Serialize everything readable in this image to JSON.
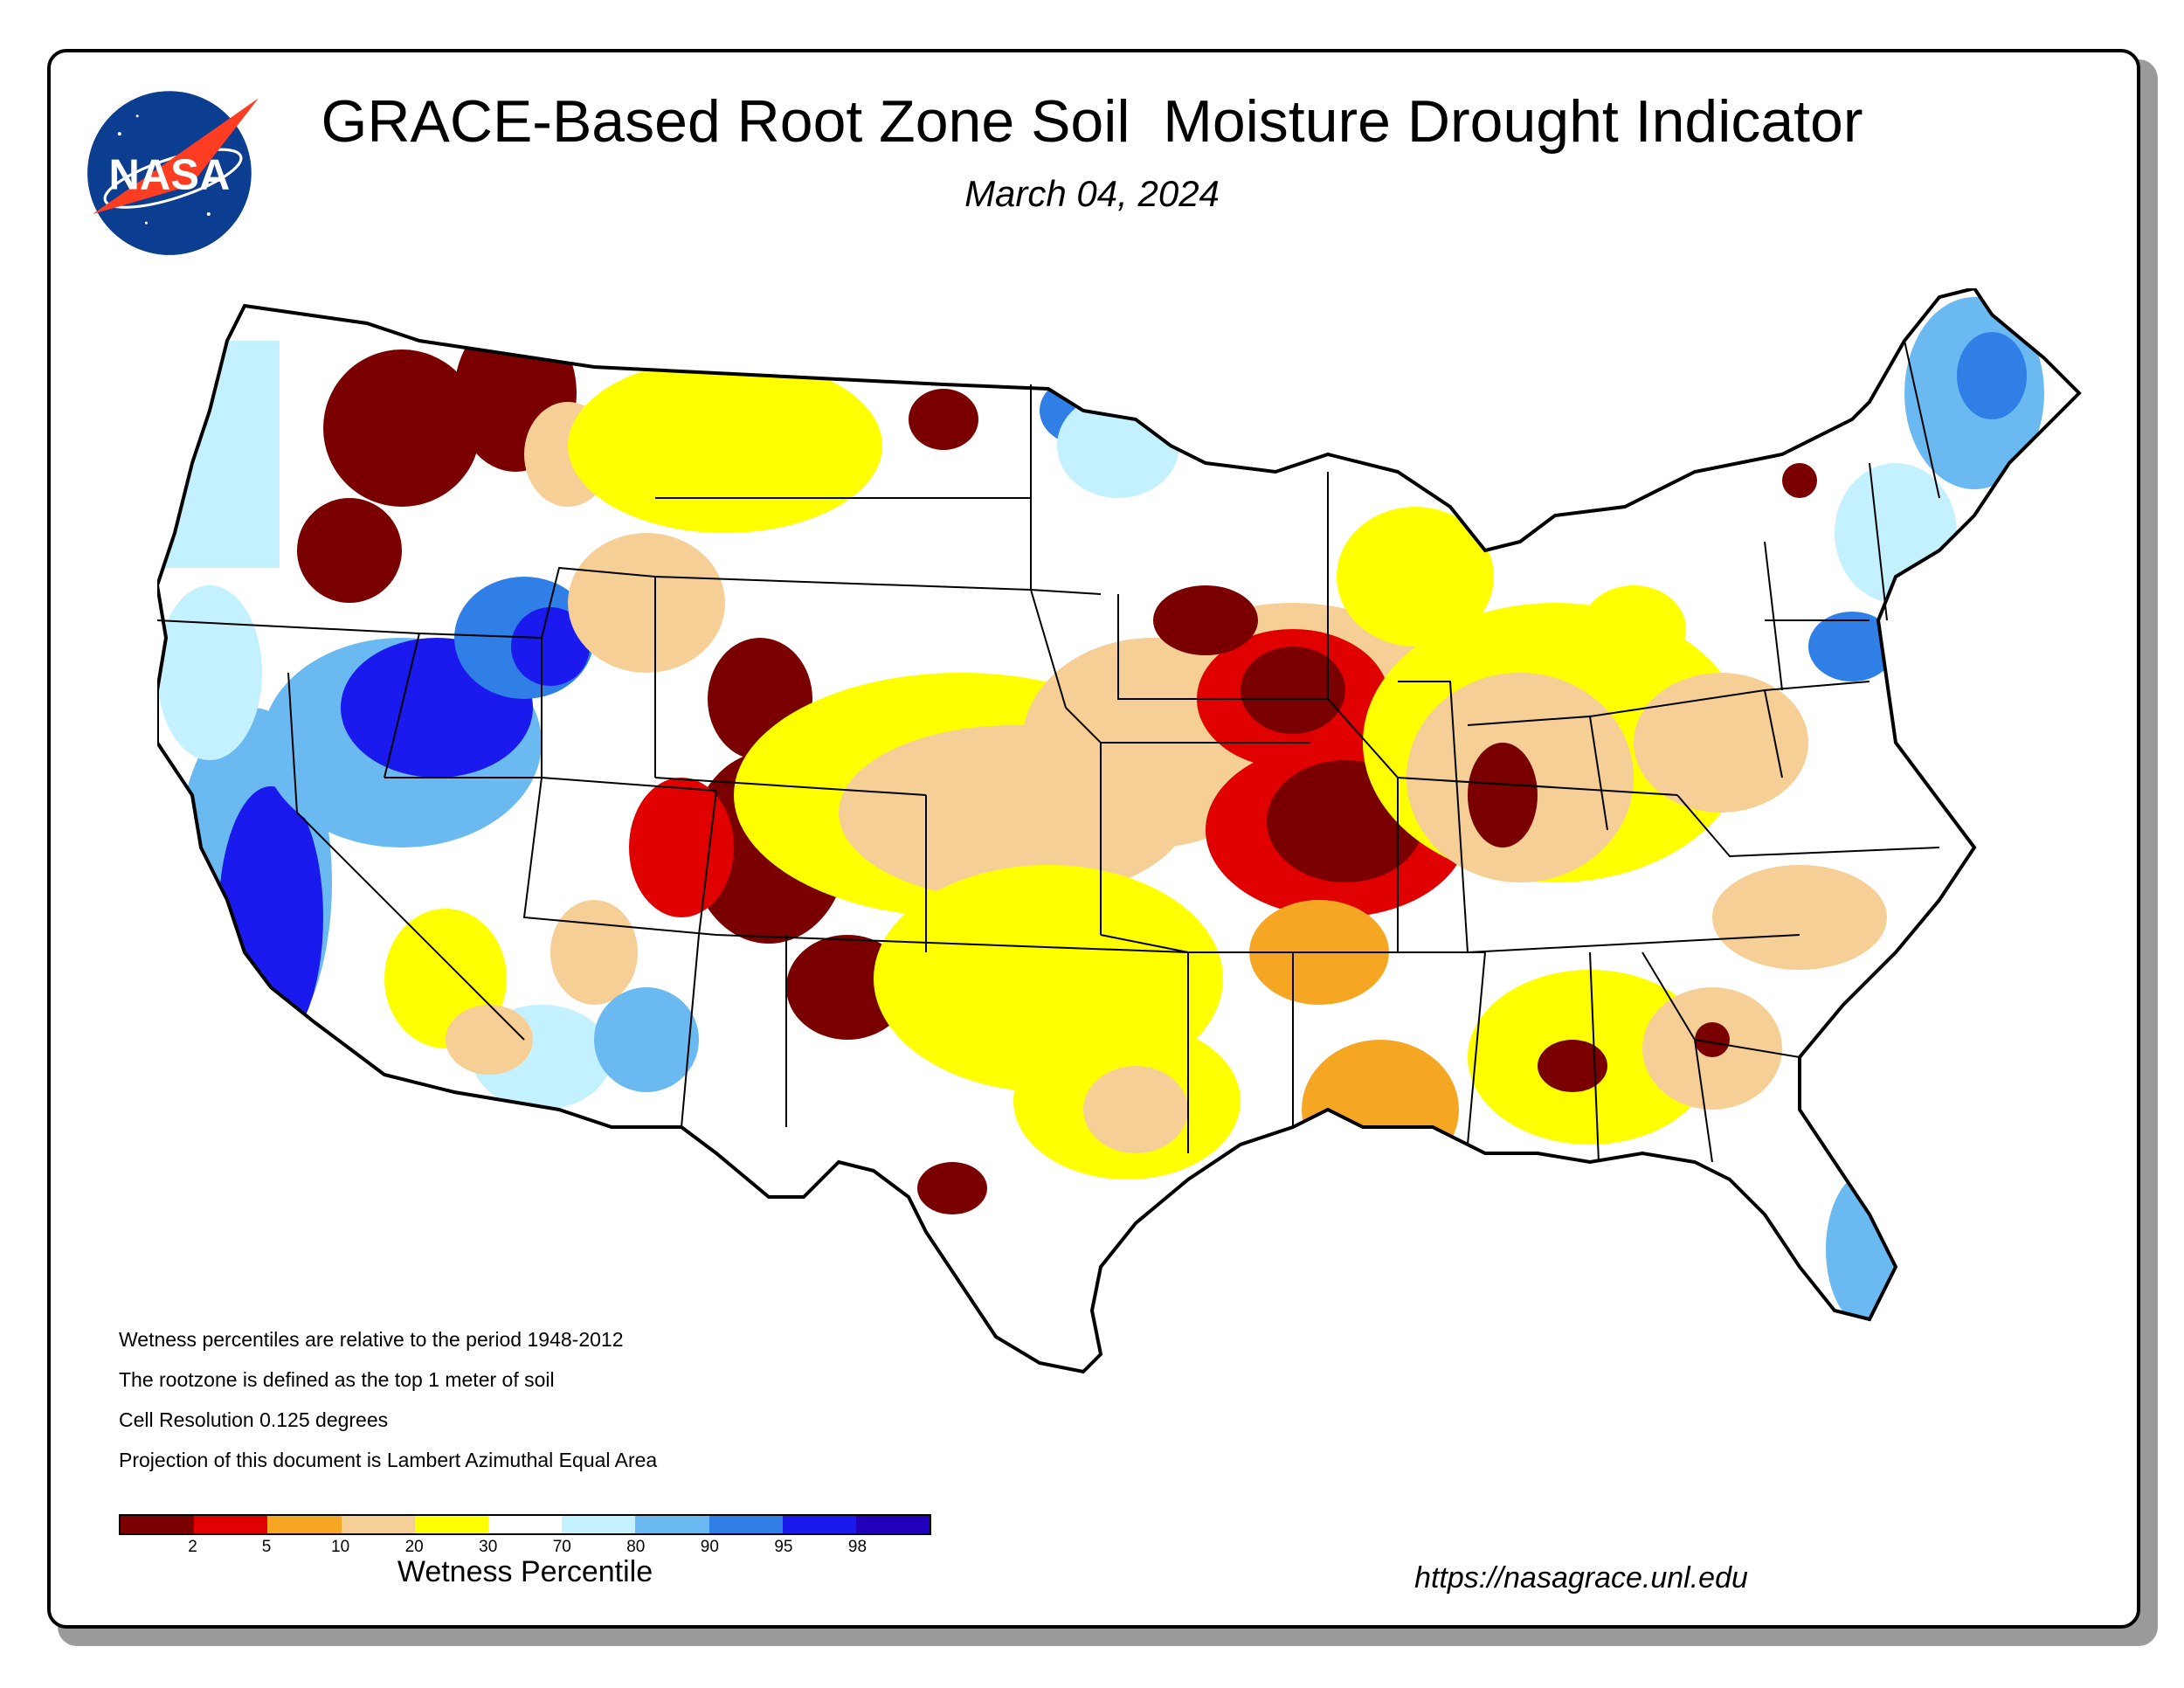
{
  "title": "GRACE-Based Root Zone Soil  Moisture Drought Indicator",
  "date": "March 04, 2024",
  "logo": {
    "text": "NASA",
    "icon": "nasa-meatball-logo"
  },
  "notes": [
    "Wetness percentiles are relative to the period 1948-2012",
    "The rootzone is defined as the top 1 meter of soil",
    "Cell Resolution 0.125 degrees",
    "Projection of this document is Lambert Azimuthal Equal Area"
  ],
  "legend": {
    "title": "Wetness Percentile",
    "ticks": [
      "2",
      "5",
      "10",
      "20",
      "30",
      "70",
      "80",
      "90",
      "95",
      "98"
    ],
    "colors": [
      "#7a0000",
      "#e00000",
      "#f5a623",
      "#f6cf96",
      "#ffff00",
      "#ffffff",
      "#c4f1ff",
      "#6ab9f0",
      "#2f7fe6",
      "#1a1aee",
      "#2200bb"
    ]
  },
  "url": "https://nasagrace.unl.edu"
}
